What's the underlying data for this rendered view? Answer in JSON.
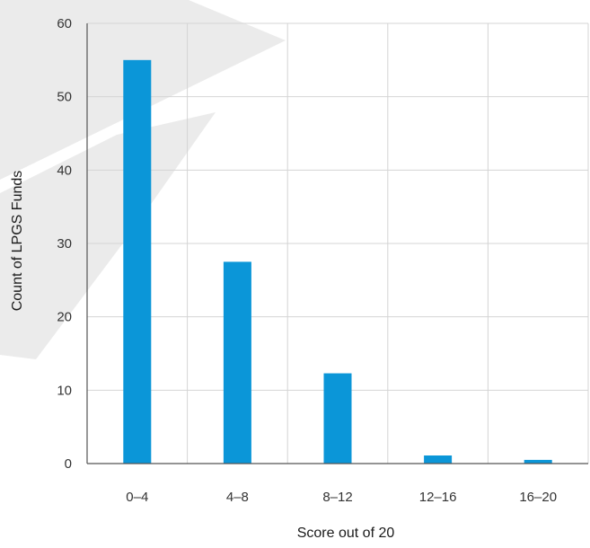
{
  "chart_data": {
    "type": "bar",
    "categories": [
      "0–4",
      "4–8",
      "8–12",
      "12–16",
      "16–20"
    ],
    "values": [
      55,
      27.5,
      12.3,
      1.1,
      0.5
    ],
    "title": "",
    "xlabel": "Score out of 20",
    "ylabel": "Count of LPGS Funds",
    "ylim": [
      0,
      60
    ],
    "yticks": [
      "0",
      "10",
      "20",
      "30",
      "40",
      "50",
      "60"
    ],
    "grid": true,
    "legend": "none",
    "colors": {
      "bar": "#0b96d8",
      "grid": "#d4d4d4",
      "axis": "#555555",
      "watermark": "#e6e6e6"
    }
  }
}
